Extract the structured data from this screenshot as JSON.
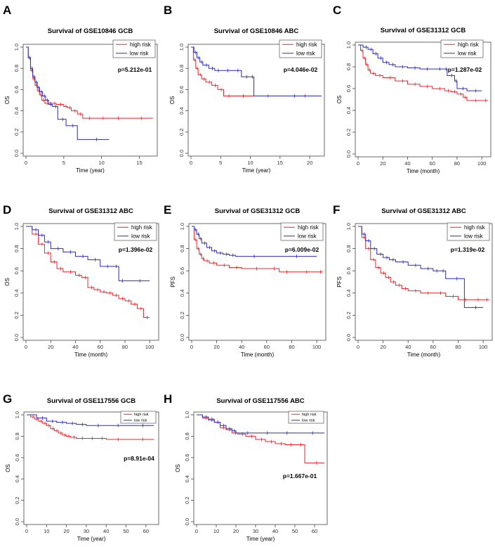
{
  "colors": {
    "high": "#e8262b",
    "low": "#2b2bb8",
    "axis": "#444444"
  },
  "chart_data": [
    {
      "type": "line",
      "panel": "A",
      "title": "Survival of GSE10846 GCB",
      "xlabel": "Time (year)",
      "ylabel": "OS",
      "xlim": [
        0,
        17
      ],
      "ylim": [
        0,
        1
      ],
      "xticks": [
        0,
        5,
        10,
        15
      ],
      "yticks": [
        0.0,
        0.2,
        0.4,
        0.6,
        0.8,
        1.0
      ],
      "legend": [
        "high risk",
        "low risk"
      ],
      "legend_size": "normal",
      "pvalue": "p=5.212e-01",
      "series": [
        {
          "name": "high risk",
          "x": [
            0,
            0.3,
            0.6,
            0.9,
            1.2,
            1.5,
            1.8,
            2.1,
            2.5,
            3,
            3.5,
            4,
            5,
            5.5,
            6,
            6.8,
            7.5,
            9,
            11,
            13,
            16.8
          ],
          "y": [
            1,
            0.9,
            0.78,
            0.7,
            0.64,
            0.59,
            0.55,
            0.5,
            0.47,
            0.47,
            0.47,
            0.46,
            0.44,
            0.43,
            0.4,
            0.37,
            0.33,
            0.33,
            0.33,
            0.33,
            0.33
          ]
        },
        {
          "name": "low risk",
          "x": [
            0,
            0.3,
            0.6,
            0.9,
            1.2,
            1.5,
            1.8,
            2.2,
            2.6,
            3,
            3.5,
            4.2,
            5.3,
            6.8,
            11
          ],
          "y": [
            1,
            0.9,
            0.8,
            0.72,
            0.67,
            0.62,
            0.58,
            0.54,
            0.5,
            0.46,
            0.44,
            0.32,
            0.26,
            0.13,
            0.13
          ]
        }
      ]
    },
    {
      "type": "line",
      "panel": "B",
      "title": "Survival of GSE10846 ABC",
      "xlabel": "Time (year)",
      "ylabel": "OS",
      "xlim": [
        0,
        22
      ],
      "ylim": [
        0,
        1
      ],
      "xticks": [
        0,
        5,
        10,
        15,
        20
      ],
      "yticks": [
        0.0,
        0.2,
        0.4,
        0.6,
        0.8,
        1.0
      ],
      "legend": [
        "high risk",
        "low risk"
      ],
      "legend_size": "normal",
      "pvalue": "p=4.046e-02",
      "series": [
        {
          "name": "high risk",
          "x": [
            0,
            0.4,
            0.8,
            1.2,
            1.8,
            2.5,
            3.5,
            4.5,
            5.5,
            7,
            10,
            15,
            22
          ],
          "y": [
            1,
            0.88,
            0.8,
            0.74,
            0.7,
            0.67,
            0.64,
            0.6,
            0.54,
            0.54,
            0.54,
            0.54,
            0.54
          ]
        },
        {
          "name": "low risk",
          "x": [
            0,
            0.5,
            1,
            1.5,
            2,
            3,
            4,
            5,
            7,
            8.5,
            10,
            10.6,
            22
          ],
          "y": [
            1,
            0.95,
            0.9,
            0.86,
            0.83,
            0.8,
            0.78,
            0.78,
            0.78,
            0.72,
            0.72,
            0.54,
            0.54
          ]
        }
      ]
    },
    {
      "type": "line",
      "panel": "C",
      "title": "Survival of GSE31312 GCB",
      "xlabel": "Time (month)",
      "ylabel": "OS",
      "xlim": [
        0,
        105
      ],
      "ylim": [
        0,
        1
      ],
      "xticks": [
        0,
        20,
        40,
        60,
        80,
        100
      ],
      "yticks": [
        0.0,
        0.2,
        0.4,
        0.6,
        0.8,
        1.0
      ],
      "legend": [
        "high risk",
        "low risk"
      ],
      "legend_size": "normal",
      "pvalue": "p=1.287e-02",
      "series": [
        {
          "name": "high risk",
          "x": [
            0,
            2,
            4,
            6,
            8,
            10,
            14,
            20,
            30,
            40,
            50,
            60,
            70,
            75,
            80,
            85,
            88,
            100,
            105
          ],
          "y": [
            1,
            0.95,
            0.88,
            0.82,
            0.77,
            0.74,
            0.72,
            0.7,
            0.67,
            0.64,
            0.62,
            0.6,
            0.58,
            0.57,
            0.55,
            0.52,
            0.49,
            0.49,
            0.49
          ]
        },
        {
          "name": "low risk",
          "x": [
            0,
            4,
            8,
            12,
            16,
            20,
            25,
            30,
            40,
            50,
            60,
            70,
            72,
            78,
            80,
            88,
            100
          ],
          "y": [
            1,
            0.98,
            0.96,
            0.92,
            0.88,
            0.84,
            0.82,
            0.8,
            0.79,
            0.78,
            0.78,
            0.78,
            0.72,
            0.67,
            0.6,
            0.58,
            0.58
          ]
        }
      ]
    },
    {
      "type": "line",
      "panel": "D",
      "title": "Survival of GSE31312 ABC",
      "xlabel": "Time (month)",
      "ylabel": "OS",
      "xlim": [
        0,
        105
      ],
      "ylim": [
        0,
        1
      ],
      "xticks": [
        0,
        20,
        40,
        60,
        80,
        100
      ],
      "yticks": [
        0.0,
        0.2,
        0.4,
        0.6,
        0.8,
        1.0
      ],
      "legend": [
        "high risk",
        "low risk"
      ],
      "legend_size": "normal",
      "pvalue": "p=1.396e-02",
      "series": [
        {
          "name": "high risk",
          "x": [
            0,
            5,
            10,
            15,
            20,
            25,
            30,
            40,
            45,
            50,
            55,
            60,
            65,
            70,
            75,
            80,
            85,
            90,
            95,
            100
          ],
          "y": [
            1,
            0.93,
            0.84,
            0.76,
            0.68,
            0.62,
            0.59,
            0.56,
            0.54,
            0.45,
            0.43,
            0.41,
            0.4,
            0.38,
            0.35,
            0.33,
            0.3,
            0.26,
            0.18,
            0.18
          ]
        },
        {
          "name": "low risk",
          "x": [
            0,
            5,
            10,
            15,
            20,
            30,
            40,
            50,
            60,
            70,
            75,
            80,
            100
          ],
          "y": [
            1,
            0.97,
            0.92,
            0.86,
            0.8,
            0.77,
            0.73,
            0.7,
            0.64,
            0.64,
            0.51,
            0.51,
            0.51
          ]
        }
      ]
    },
    {
      "type": "line",
      "panel": "E",
      "title": "Survival of GSE31312 GCB",
      "xlabel": "Time (month)",
      "ylabel": "PFS",
      "xlim": [
        0,
        105
      ],
      "ylim": [
        0,
        1
      ],
      "xticks": [
        0,
        20,
        40,
        60,
        80,
        100
      ],
      "yticks": [
        0.0,
        0.2,
        0.4,
        0.6,
        0.8,
        1.0
      ],
      "legend": [
        "high risk",
        "low risk"
      ],
      "legend_size": "normal",
      "pvalue": "p=6.009e-02",
      "series": [
        {
          "name": "high risk",
          "x": [
            0,
            2,
            4,
            6,
            8,
            10,
            14,
            20,
            30,
            40,
            60,
            70,
            80,
            100,
            105
          ],
          "y": [
            1,
            0.88,
            0.8,
            0.75,
            0.71,
            0.69,
            0.67,
            0.65,
            0.63,
            0.62,
            0.62,
            0.59,
            0.59,
            0.59,
            0.59
          ]
        },
        {
          "name": "low risk",
          "x": [
            0,
            2,
            4,
            6,
            8,
            12,
            16,
            20,
            25,
            30,
            35,
            60,
            100
          ],
          "y": [
            1,
            0.97,
            0.93,
            0.89,
            0.85,
            0.81,
            0.78,
            0.76,
            0.75,
            0.74,
            0.73,
            0.73,
            0.73
          ]
        }
      ]
    },
    {
      "type": "line",
      "panel": "F",
      "title": "Survival of GSE31312 ABC",
      "xlabel": "Time (month)",
      "ylabel": "PFS",
      "xlim": [
        0,
        105
      ],
      "ylim": [
        0,
        1
      ],
      "xticks": [
        0,
        20,
        40,
        60,
        80,
        100
      ],
      "yticks": [
        0.0,
        0.2,
        0.4,
        0.6,
        0.8,
        1.0
      ],
      "legend": [
        "high risk",
        "low risk"
      ],
      "legend_size": "normal",
      "pvalue": "p=1.319e-02",
      "series": [
        {
          "name": "high risk",
          "x": [
            0,
            3,
            6,
            10,
            14,
            18,
            22,
            26,
            30,
            35,
            40,
            50,
            60,
            70,
            80,
            90,
            100,
            105
          ],
          "y": [
            1,
            0.9,
            0.8,
            0.7,
            0.63,
            0.58,
            0.54,
            0.5,
            0.47,
            0.44,
            0.42,
            0.4,
            0.4,
            0.37,
            0.34,
            0.34,
            0.34,
            0.34
          ]
        },
        {
          "name": "low risk",
          "x": [
            0,
            3,
            6,
            10,
            15,
            20,
            25,
            30,
            40,
            50,
            60,
            65,
            70,
            85,
            100
          ],
          "y": [
            1,
            0.93,
            0.87,
            0.8,
            0.75,
            0.72,
            0.7,
            0.68,
            0.65,
            0.62,
            0.6,
            0.6,
            0.53,
            0.27,
            0.27
          ]
        }
      ]
    },
    {
      "type": "line",
      "panel": "G",
      "title": "Survival of GSE117556 GCB",
      "xlabel": "Time (year)",
      "ylabel": "OS",
      "xlim": [
        0,
        65
      ],
      "ylim": [
        0,
        1
      ],
      "xticks": [
        0,
        10,
        20,
        30,
        40,
        50,
        60
      ],
      "yticks": [
        0.0,
        0.2,
        0.4,
        0.6,
        0.8,
        1.0
      ],
      "legend": [
        "high risk",
        "low risk"
      ],
      "legend_size": "small",
      "pvalue": "p=8.91e-04",
      "series": [
        {
          "name": "high risk",
          "x": [
            0,
            2,
            4,
            6,
            8,
            10,
            12,
            14,
            16,
            18,
            20,
            22,
            25,
            30,
            35,
            40,
            50,
            64
          ],
          "y": [
            1,
            0.98,
            0.96,
            0.94,
            0.92,
            0.9,
            0.87,
            0.85,
            0.83,
            0.81,
            0.8,
            0.79,
            0.78,
            0.78,
            0.78,
            0.77,
            0.77,
            0.77
          ]
        },
        {
          "name": "low risk",
          "x": [
            0,
            5,
            10,
            15,
            20,
            25,
            30,
            40,
            50,
            64
          ],
          "y": [
            1,
            0.97,
            0.94,
            0.93,
            0.92,
            0.91,
            0.9,
            0.9,
            0.9,
            0.9
          ]
        }
      ]
    },
    {
      "type": "line",
      "panel": "H",
      "title": "Survival of GSE117556 ABC",
      "xlabel": "Time (year)",
      "ylabel": "OS",
      "xlim": [
        0,
        65
      ],
      "ylim": [
        0,
        1
      ],
      "xticks": [
        0,
        10,
        20,
        30,
        40,
        50,
        60
      ],
      "yticks": [
        0.0,
        0.2,
        0.4,
        0.6,
        0.8,
        1.0
      ],
      "legend": [
        "high risk",
        "low risk"
      ],
      "legend_size": "small",
      "pvalue": "p=1.667e-01",
      "series": [
        {
          "name": "high risk",
          "x": [
            0,
            3,
            6,
            9,
            12,
            15,
            18,
            21,
            25,
            30,
            35,
            40,
            45,
            50,
            55,
            65
          ],
          "y": [
            1,
            0.97,
            0.95,
            0.93,
            0.88,
            0.86,
            0.83,
            0.82,
            0.8,
            0.77,
            0.75,
            0.73,
            0.72,
            0.72,
            0.55,
            0.55
          ]
        },
        {
          "name": "low risk",
          "x": [
            0,
            3,
            6,
            9,
            12,
            15,
            18,
            20,
            30,
            40,
            50,
            65
          ],
          "y": [
            1,
            0.98,
            0.96,
            0.93,
            0.9,
            0.87,
            0.85,
            0.83,
            0.83,
            0.83,
            0.83,
            0.83
          ]
        }
      ]
    }
  ]
}
